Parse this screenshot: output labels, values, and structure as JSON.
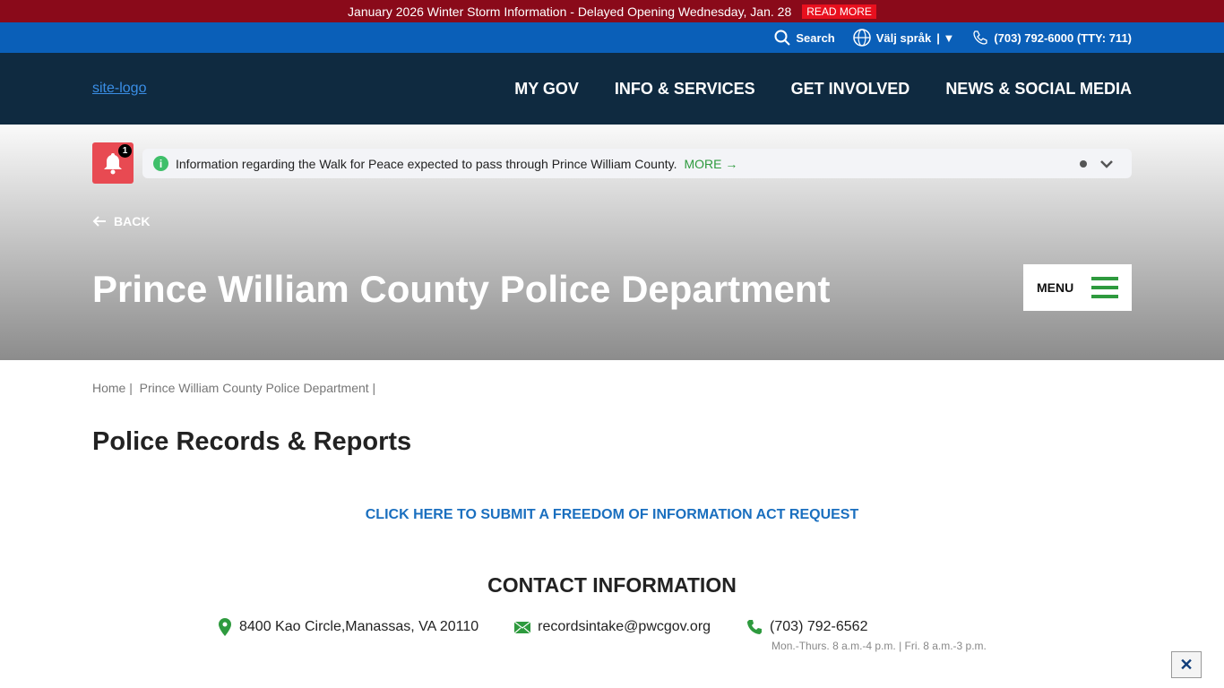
{
  "alert": {
    "text": "January 2026 Winter Storm Information - Delayed Opening Wednesday, Jan. 28",
    "button": "READ MORE"
  },
  "utility": {
    "search": "Search",
    "language": "Välj språk",
    "phone": "(703) 792-6000 (TTY: 711)"
  },
  "nav": {
    "logo_alt": "site-logo",
    "items": [
      "MY GOV",
      "INFO & SERVICES",
      "GET INVOLVED",
      "NEWS & SOCIAL MEDIA"
    ]
  },
  "notice": {
    "count": "1",
    "text": "Information regarding the Walk for Peace expected to pass through Prince William County.",
    "more": "MORE →"
  },
  "hero": {
    "back": "BACK",
    "title": "Prince William County Police Department",
    "menu": "MENU"
  },
  "breadcrumb": [
    "Home",
    "Prince William County Police Department"
  ],
  "page": {
    "heading": "Police Records & Reports",
    "foia_link": "CLICK HERE TO SUBMIT A FREEDOM OF INFORMATION ACT REQUEST",
    "contact_heading": "CONTACT INFORMATION",
    "address": "8400 Kao Circle,Manassas, VA 20110",
    "email": "recordsintake@pwcgov.org",
    "phone": "(703) 792-6562",
    "hours": "Mon.-Thurs. 8 a.m.-4 p.m. | Fri. 8 a.m.-3 p.m."
  },
  "close_label": "✕",
  "colors": {
    "alert": "#8a0a1a",
    "utility": "#0a5fb8",
    "nav": "#0f2a40",
    "accent_green": "#2e9a3e",
    "link": "#1a6fbf"
  }
}
